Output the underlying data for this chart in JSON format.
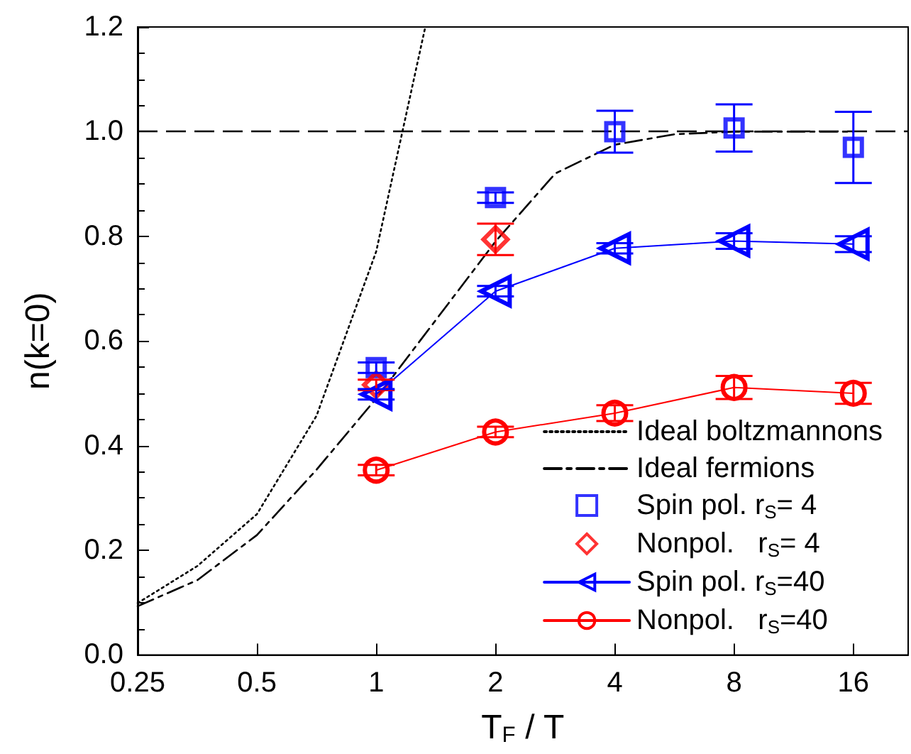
{
  "chart_data": {
    "type": "line",
    "xlabel": "T$_{F}$ / T",
    "ylabel": "n(k=0)",
    "log": "x",
    "xlim": [
      0.25,
      22
    ],
    "xticks": [
      0.25,
      0.5,
      1,
      2,
      4,
      8,
      16
    ],
    "ylim": [
      0,
      1.2
    ],
    "yticks": [
      {
        "value": 0,
        "label": "0.0"
      },
      0.2,
      0.4,
      0.6,
      0.8,
      {
        "value": 1,
        "label": "1.0"
      },
      1.2
    ],
    "grid": false,
    "legend": "bottom right",
    "ref_lines": [
      {
        "axis": "y",
        "value": 1.0,
        "color": "#000000",
        "line_style": "dashed"
      }
    ],
    "series": [
      {
        "name": "Ideal boltzmannons",
        "color": "#000000",
        "line_style": "dotted",
        "marker": "none",
        "x": [
          0.25,
          0.354,
          0.5,
          0.707,
          1,
          1.33
        ],
        "values": [
          0.099,
          0.17,
          0.269,
          0.457,
          0.771,
          1.2
        ]
      },
      {
        "name": "Ideal fermions",
        "color": "#000000",
        "line_style": "dashed",
        "marker": "none",
        "x": [
          0.25,
          0.354,
          0.5,
          0.707,
          1,
          1.414,
          2,
          2.83,
          4,
          5.66,
          8,
          11.3,
          16
        ],
        "values": [
          0.093,
          0.143,
          0.229,
          0.354,
          0.49,
          0.64,
          0.79,
          0.92,
          0.975,
          0.995,
          1.0,
          1.0,
          1.0
        ]
      },
      {
        "name": "Spin pol. r$_{S}$= 4",
        "type": "scatter",
        "color": "#0000ff",
        "marker": "square",
        "x": [
          1,
          2,
          4,
          8,
          16
        ],
        "values": [
          0.549,
          0.874,
          1.0,
          1.007,
          0.97
        ],
        "errors": [
          0.01,
          0.01,
          0.04,
          0.045,
          0.068
        ]
      },
      {
        "name": "Nonpol.   r$_{S}$= 4",
        "type": "scatter",
        "color": "#ff0000",
        "marker": "diamond",
        "x": [
          1,
          2
        ],
        "values": [
          0.516,
          0.794
        ],
        "errors": [
          0.01,
          0.03
        ]
      },
      {
        "name": "Spin pol. r$_{S}$=40",
        "color": "#0000ff",
        "line_style": "solid",
        "marker": "triangle",
        "x": [
          1,
          2,
          4,
          8,
          16
        ],
        "values": [
          0.498,
          0.695,
          0.777,
          0.791,
          0.785
        ],
        "errors": [
          0.01,
          0.01,
          0.01,
          0.015,
          0.015
        ]
      },
      {
        "name": "Nonpol.   r$_{S}$=40",
        "color": "#ff0000",
        "line_style": "solid",
        "marker": "circle",
        "x": [
          1,
          2,
          4,
          8,
          16
        ],
        "values": [
          0.353,
          0.426,
          0.462,
          0.511,
          0.5
        ],
        "errors": [
          0.01,
          0.01,
          0.015,
          0.022,
          0.02
        ]
      }
    ]
  }
}
